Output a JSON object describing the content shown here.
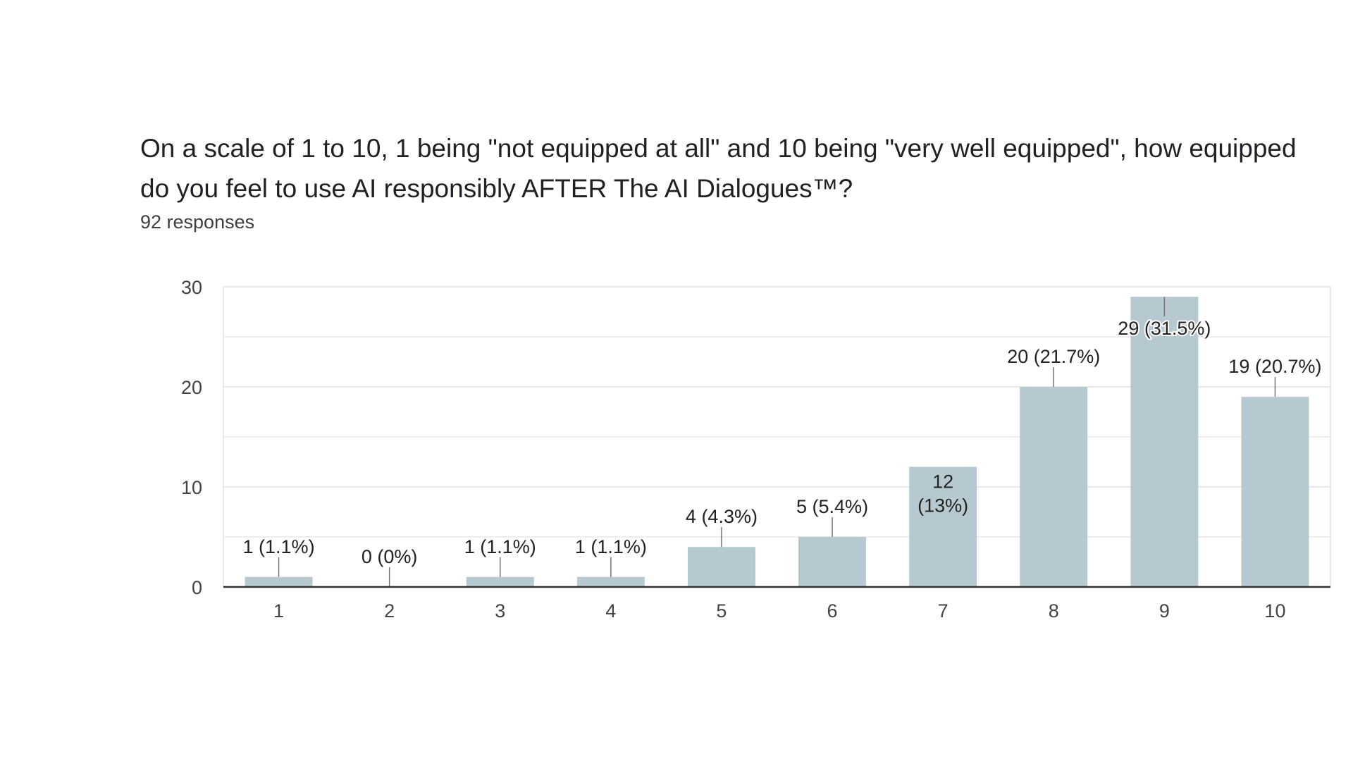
{
  "question": {
    "title": "On a scale of 1 to 10, 1 being \"not equipped at all\" and 10 being \"very well equipped\", how equipped do you feel to use AI responsibly AFTER The AI Dialogues™?",
    "responses": "92 responses"
  },
  "colors": {
    "bar": "#b6c9d0",
    "gridline": "#e8e8e8",
    "baseline": "#333333",
    "leader": "#757575"
  },
  "chart_data": {
    "type": "bar",
    "categories": [
      "1",
      "2",
      "3",
      "4",
      "5",
      "6",
      "7",
      "8",
      "9",
      "10"
    ],
    "values": [
      1,
      0,
      1,
      1,
      4,
      5,
      12,
      20,
      29,
      19
    ],
    "labels": [
      [
        "1 (1.1%)"
      ],
      [
        "0 (0%)"
      ],
      [
        "1 (1.1%)"
      ],
      [
        "1 (1.1%)"
      ],
      [
        "4 (4.3%)"
      ],
      [
        "5 (5.4%)"
      ],
      [
        "12",
        "(13%)"
      ],
      [
        "20 (21.7%)"
      ],
      [
        "29 (31.5%)"
      ],
      [
        "19 (20.7%)"
      ]
    ],
    "ylim": [
      0,
      30
    ],
    "yticks": [
      "0",
      "10",
      "20",
      "30"
    ],
    "grid": true
  }
}
